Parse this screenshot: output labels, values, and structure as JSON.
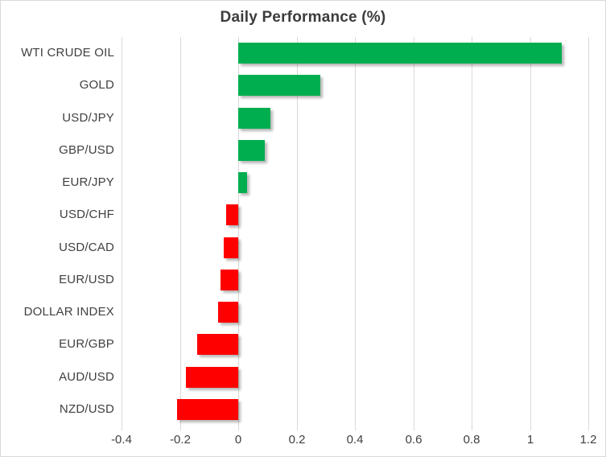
{
  "chart_data": {
    "type": "bar",
    "orientation": "horizontal",
    "title": "Daily Performance (%)",
    "categories": [
      "WTI CRUDE OIL",
      "GOLD",
      "USD/JPY",
      "GBP/USD",
      "EUR/JPY",
      "USD/CHF",
      "USD/CAD",
      "EUR/USD",
      "DOLLAR INDEX",
      "EUR/GBP",
      "AUD/USD",
      "NZD/USD"
    ],
    "values": [
      1.11,
      0.28,
      0.11,
      0.09,
      0.03,
      -0.04,
      -0.05,
      -0.06,
      -0.07,
      -0.14,
      -0.18,
      -0.21
    ],
    "xlabel": "",
    "ylabel": "",
    "xlim": [
      -0.4,
      1.2
    ],
    "x_ticks": [
      -0.4,
      -0.2,
      0,
      0.2,
      0.4,
      0.6,
      0.8,
      1,
      1.2
    ],
    "x_tick_labels": [
      "-0.4",
      "-0.2",
      "0",
      "0.2",
      "0.4",
      "0.6",
      "0.8",
      "1",
      "1.2"
    ],
    "grid": "vertical-only",
    "legend": "none",
    "colors": {
      "positive_bar": "#00AE50",
      "negative_bar": "#FF0000",
      "gridline": "#D9D9D9",
      "chart_border": "#D9D9D9",
      "title_text": "#3C3C3C",
      "label_text": "#404040",
      "background": "#FFFFFF"
    }
  }
}
